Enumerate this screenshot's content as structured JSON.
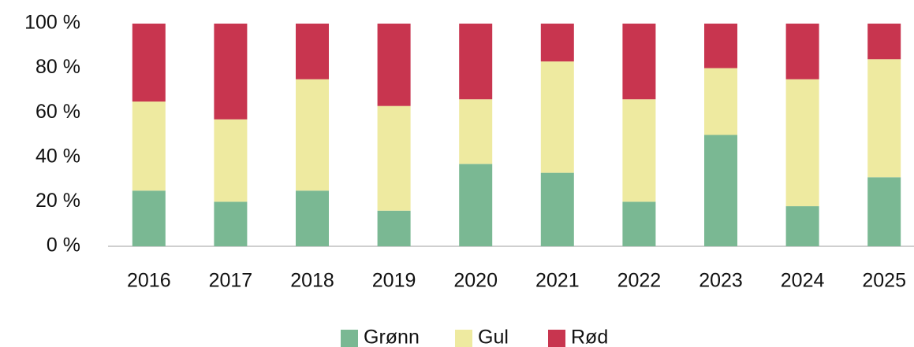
{
  "chart_data": {
    "type": "stacked-bar",
    "categories": [
      "2016",
      "2017",
      "2018",
      "2019",
      "2020",
      "2021",
      "2022",
      "2023",
      "2024",
      "2025"
    ],
    "series": [
      {
        "name": "Grønn",
        "color": "#7ab893",
        "values": [
          25,
          20,
          25,
          16,
          37,
          33,
          20,
          50,
          18,
          31
        ]
      },
      {
        "name": "Gul",
        "color": "#eeeaa0",
        "values": [
          40,
          37,
          50,
          47,
          29,
          50,
          46,
          30,
          57,
          53
        ]
      },
      {
        "name": "Rød",
        "color": "#c8354f",
        "values": [
          35,
          43,
          25,
          37,
          34,
          17,
          34,
          20,
          25,
          16
        ]
      }
    ],
    "ylim": [
      0,
      100
    ],
    "yticks": [
      {
        "value": 0,
        "label": "0 %"
      },
      {
        "value": 20,
        "label": "20 %"
      },
      {
        "value": 40,
        "label": "40 %"
      },
      {
        "value": 60,
        "label": "60 %"
      },
      {
        "value": 80,
        "label": "80 %"
      },
      {
        "value": 100,
        "label": "100 %"
      }
    ],
    "legend": "bottom"
  }
}
